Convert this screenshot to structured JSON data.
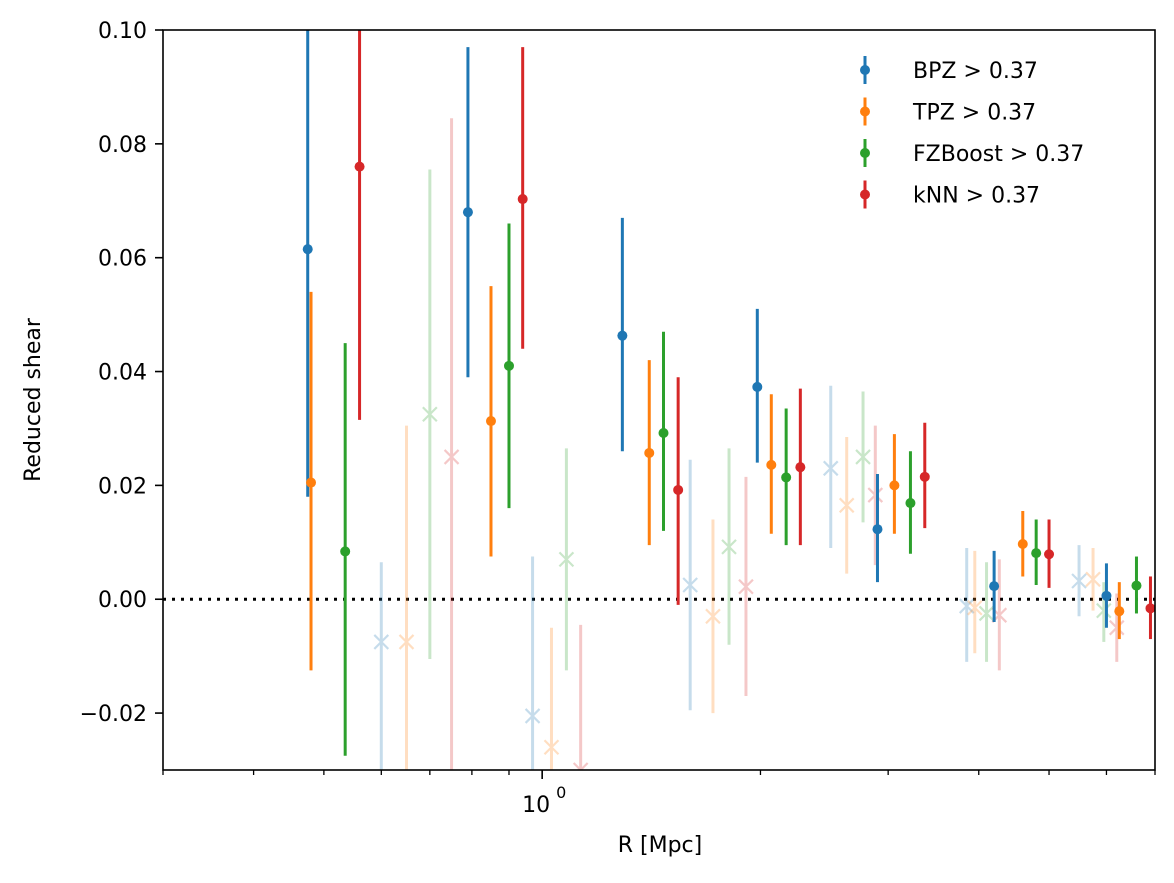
{
  "chart_data": {
    "type": "scatter",
    "xlabel": "R [Mpc]",
    "ylabel": "Reduced shear",
    "xscale": "log",
    "xlim": [
      0.3,
      7.0
    ],
    "ylim": [
      -0.03,
      0.1
    ],
    "yticks": [
      {
        "value": -0.02,
        "label": "−0.02"
      },
      {
        "value": 0.0,
        "label": "0.00"
      },
      {
        "value": 0.02,
        "label": "0.02"
      },
      {
        "value": 0.04,
        "label": "0.04"
      },
      {
        "value": 0.06,
        "label": "0.06"
      },
      {
        "value": 0.08,
        "label": "0.08"
      },
      {
        "value": 0.1,
        "label": "0.10"
      }
    ],
    "xticks": [
      {
        "value": 1.0,
        "base": "10",
        "exp": "0"
      }
    ],
    "reference_line": {
      "y": 0.0,
      "style": "dotted",
      "color": "#000000"
    },
    "legend": {
      "position": "upper right"
    },
    "series": [
      {
        "name": "BPZ > 0.37",
        "color": "#1f77b4",
        "marker": "o",
        "points": [
          {
            "x": 0.475,
            "y": 0.0615,
            "lo": 0.018,
            "hi": 0.101
          },
          {
            "x": 0.79,
            "y": 0.068,
            "lo": 0.039,
            "hi": 0.097
          },
          {
            "x": 1.29,
            "y": 0.0463,
            "lo": 0.026,
            "hi": 0.067
          },
          {
            "x": 1.98,
            "y": 0.0373,
            "lo": 0.024,
            "hi": 0.051
          },
          {
            "x": 2.9,
            "y": 0.0123,
            "lo": 0.003,
            "hi": 0.022
          },
          {
            "x": 4.2,
            "y": 0.0023,
            "lo": -0.004,
            "hi": 0.0085
          },
          {
            "x": 6.0,
            "y": 0.0006,
            "lo": -0.005,
            "hi": 0.0063
          }
        ]
      },
      {
        "name": "TPZ > 0.37",
        "color": "#ff7f0e",
        "marker": "o",
        "points": [
          {
            "x": 0.48,
            "y": 0.0205,
            "lo": -0.0125,
            "hi": 0.054
          },
          {
            "x": 0.85,
            "y": 0.0313,
            "lo": 0.0075,
            "hi": 0.055
          },
          {
            "x": 1.405,
            "y": 0.0257,
            "lo": 0.0095,
            "hi": 0.042
          },
          {
            "x": 2.07,
            "y": 0.0236,
            "lo": 0.0115,
            "hi": 0.036
          },
          {
            "x": 3.06,
            "y": 0.02,
            "lo": 0.0115,
            "hi": 0.029
          },
          {
            "x": 4.6,
            "y": 0.0097,
            "lo": 0.004,
            "hi": 0.0155
          },
          {
            "x": 6.25,
            "y": -0.0021,
            "lo": -0.007,
            "hi": 0.003
          }
        ]
      },
      {
        "name": "FZBoost > 0.37",
        "color": "#2ca02c",
        "marker": "o",
        "points": [
          {
            "x": 0.535,
            "y": 0.0084,
            "lo": -0.0275,
            "hi": 0.045
          },
          {
            "x": 0.9,
            "y": 0.041,
            "lo": 0.016,
            "hi": 0.066
          },
          {
            "x": 1.47,
            "y": 0.0292,
            "lo": 0.012,
            "hi": 0.047
          },
          {
            "x": 2.17,
            "y": 0.0214,
            "lo": 0.0095,
            "hi": 0.0335
          },
          {
            "x": 3.22,
            "y": 0.0169,
            "lo": 0.008,
            "hi": 0.026
          },
          {
            "x": 4.8,
            "y": 0.0081,
            "lo": 0.0025,
            "hi": 0.014
          },
          {
            "x": 6.6,
            "y": 0.0024,
            "lo": -0.0025,
            "hi": 0.0075
          }
        ]
      },
      {
        "name": "kNN > 0.37",
        "color": "#d62728",
        "marker": "o",
        "points": [
          {
            "x": 0.56,
            "y": 0.076,
            "lo": 0.0315,
            "hi": 0.101
          },
          {
            "x": 0.94,
            "y": 0.0703,
            "lo": 0.044,
            "hi": 0.097
          },
          {
            "x": 1.54,
            "y": 0.0192,
            "lo": -0.001,
            "hi": 0.039
          },
          {
            "x": 2.27,
            "y": 0.0232,
            "lo": 0.0095,
            "hi": 0.037
          },
          {
            "x": 3.37,
            "y": 0.0215,
            "lo": 0.0125,
            "hi": 0.031
          },
          {
            "x": 5.0,
            "y": 0.0079,
            "lo": 0.002,
            "hi": 0.014
          },
          {
            "x": 6.9,
            "y": -0.0016,
            "lo": -0.007,
            "hi": 0.004
          }
        ]
      },
      {
        "color": "#1f77b4",
        "marker": "x",
        "faded": true,
        "points": [
          {
            "x": 0.6,
            "y": -0.0075,
            "lo": -0.031,
            "hi": 0.0065
          },
          {
            "x": 0.97,
            "y": -0.0205,
            "lo": -0.031,
            "hi": 0.0075
          },
          {
            "x": 1.6,
            "y": 0.0025,
            "lo": -0.0195,
            "hi": 0.0245
          },
          {
            "x": 2.5,
            "y": 0.023,
            "lo": 0.009,
            "hi": 0.0375
          },
          {
            "x": 3.85,
            "y": -0.0012,
            "lo": -0.011,
            "hi": 0.009
          },
          {
            "x": 5.5,
            "y": 0.0032,
            "lo": -0.003,
            "hi": 0.0095
          }
        ]
      },
      {
        "color": "#ff7f0e",
        "marker": "x",
        "faded": true,
        "points": [
          {
            "x": 0.65,
            "y": -0.0075,
            "lo": -0.031,
            "hi": 0.0305
          },
          {
            "x": 1.03,
            "y": -0.026,
            "lo": -0.031,
            "hi": -0.005
          },
          {
            "x": 1.72,
            "y": -0.003,
            "lo": -0.02,
            "hi": 0.014
          },
          {
            "x": 2.63,
            "y": 0.0165,
            "lo": 0.0045,
            "hi": 0.0285
          },
          {
            "x": 3.95,
            "y": -0.0015,
            "lo": -0.0095,
            "hi": 0.0085
          },
          {
            "x": 5.75,
            "y": 0.0035,
            "lo": -0.002,
            "hi": 0.009
          }
        ]
      },
      {
        "color": "#2ca02c",
        "marker": "x",
        "faded": true,
        "points": [
          {
            "x": 0.7,
            "y": 0.0325,
            "lo": -0.0105,
            "hi": 0.0755
          },
          {
            "x": 1.08,
            "y": 0.007,
            "lo": -0.0125,
            "hi": 0.0265
          },
          {
            "x": 1.81,
            "y": 0.0092,
            "lo": -0.008,
            "hi": 0.0265
          },
          {
            "x": 2.77,
            "y": 0.025,
            "lo": 0.0135,
            "hi": 0.0365
          },
          {
            "x": 4.1,
            "y": -0.0025,
            "lo": -0.011,
            "hi": 0.0065
          },
          {
            "x": 5.95,
            "y": -0.002,
            "lo": -0.0075,
            "hi": 0.003
          }
        ]
      },
      {
        "color": "#d62728",
        "marker": "x",
        "faded": true,
        "points": [
          {
            "x": 0.75,
            "y": 0.025,
            "lo": -0.031,
            "hi": 0.0845
          },
          {
            "x": 1.13,
            "y": -0.03,
            "lo": -0.031,
            "hi": -0.0045
          },
          {
            "x": 1.91,
            "y": 0.0022,
            "lo": -0.017,
            "hi": 0.0215
          },
          {
            "x": 2.88,
            "y": 0.0183,
            "lo": 0.006,
            "hi": 0.0305
          },
          {
            "x": 4.27,
            "y": -0.0028,
            "lo": -0.0125,
            "hi": 0.007
          },
          {
            "x": 6.2,
            "y": -0.005,
            "lo": -0.011,
            "hi": 0.001
          }
        ]
      }
    ]
  }
}
